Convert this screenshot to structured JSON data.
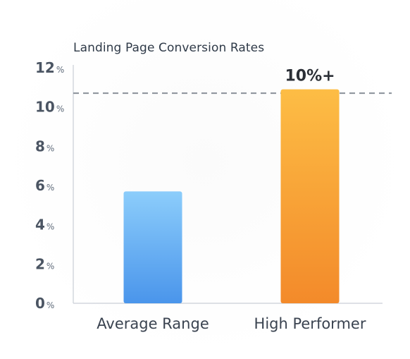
{
  "chart_data": {
    "type": "bar",
    "title": "Landing Page Conversion Rates",
    "categories": [
      "Average Range",
      "High Performer"
    ],
    "values": [
      5.7,
      10.9
    ],
    "ylim": [
      0,
      12
    ],
    "yticks": [
      0,
      2,
      4,
      6,
      8,
      10,
      12
    ],
    "ytick_suffix": "%",
    "reference_line": 10.7,
    "data_labels": [
      "",
      "10%+"
    ],
    "colors": {
      "Average Range": [
        "#8ccdfb",
        "#4a95eb"
      ],
      "High Performer": [
        "#fdbd45",
        "#f38a2a"
      ]
    },
    "grid": false,
    "xlabel": "",
    "ylabel": ""
  }
}
